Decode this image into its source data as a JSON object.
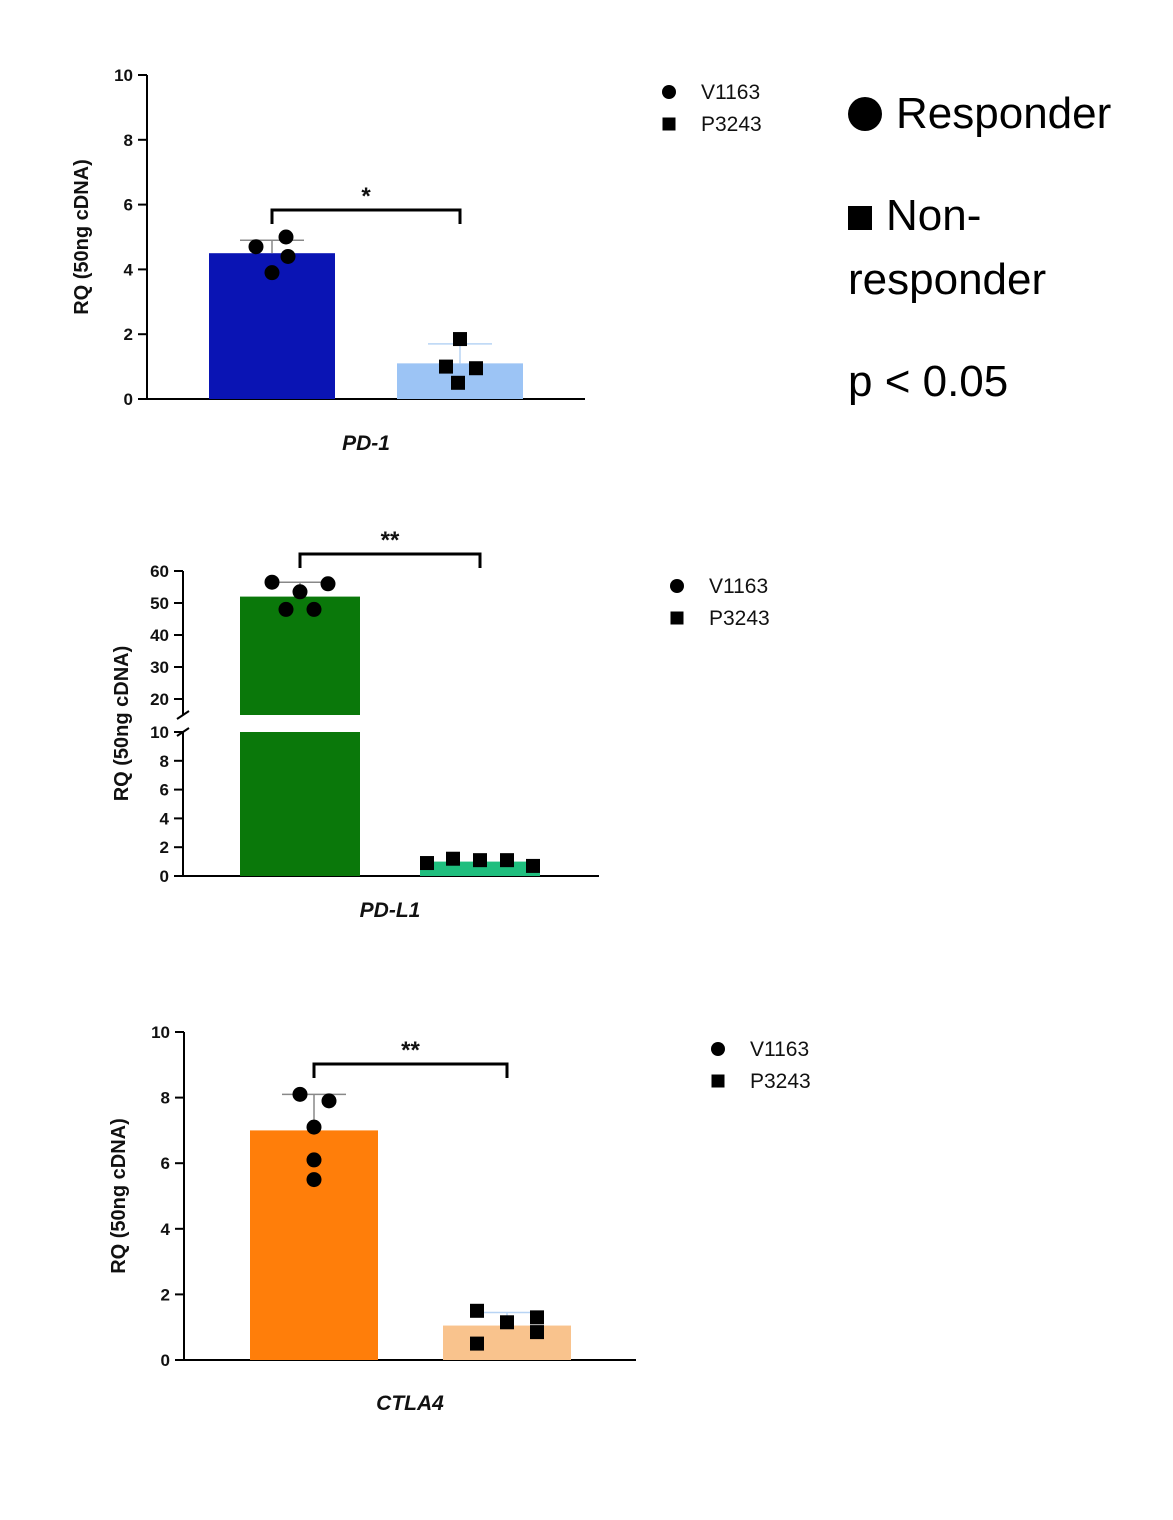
{
  "notes": {
    "responder": "Responder",
    "non_responder": "Non-responder",
    "p_value": "p < 0.05"
  },
  "chart_data": [
    {
      "type": "bar",
      "gene": "PD-1",
      "ylabel": "RQ (50ng cDNA)",
      "ylim": [
        0,
        10
      ],
      "yticks": [
        0,
        2,
        4,
        6,
        8,
        10
      ],
      "significance": "*",
      "legend": [
        "V1163",
        "P3243"
      ],
      "series": [
        {
          "name": "V1163",
          "value": 4.5,
          "error": 0.4,
          "color": "#0a14b4",
          "points": [
            5.0,
            4.7,
            4.4,
            3.9
          ]
        },
        {
          "name": "P3243",
          "value": 1.1,
          "error": 0.6,
          "color": "#9cc4f5",
          "points": [
            1.85,
            1.0,
            0.95,
            0.5
          ]
        }
      ]
    },
    {
      "type": "bar",
      "gene": "PD-L1",
      "ylabel": "RQ (50ng cDNA)",
      "broken_axis": true,
      "ylim_lower": [
        0,
        10
      ],
      "ylim_upper": [
        15,
        60
      ],
      "yticks_lower": [
        0,
        2,
        4,
        6,
        8,
        10
      ],
      "yticks_upper": [
        20,
        30,
        40,
        50,
        60
      ],
      "significance": "**",
      "legend": [
        "V1163",
        "P3243"
      ],
      "series": [
        {
          "name": "V1163",
          "value": 52,
          "error": 4.5,
          "color": "#0a780a",
          "points": [
            56.5,
            56,
            53.5,
            48,
            48
          ]
        },
        {
          "name": "P3243",
          "value": 1.0,
          "error": 0.2,
          "color": "#1fbe7e",
          "points": [
            0.9,
            1.2,
            1.1,
            1.1,
            0.7
          ]
        }
      ]
    },
    {
      "type": "bar",
      "gene": "CTLA4",
      "ylabel": "RQ (50ng cDNA)",
      "ylim": [
        0,
        10
      ],
      "yticks": [
        0,
        2,
        4,
        6,
        8,
        10
      ],
      "significance": "**",
      "legend": [
        "V1163",
        "P3243"
      ],
      "series": [
        {
          "name": "V1163",
          "value": 7.0,
          "error": 1.1,
          "color": "#ff7e0a",
          "points": [
            8.1,
            7.9,
            7.1,
            6.1,
            5.5
          ]
        },
        {
          "name": "P3243",
          "value": 1.05,
          "error": 0.4,
          "color": "#f9c38d",
          "points": [
            1.5,
            1.3,
            1.15,
            0.85,
            0.5
          ]
        }
      ]
    }
  ]
}
